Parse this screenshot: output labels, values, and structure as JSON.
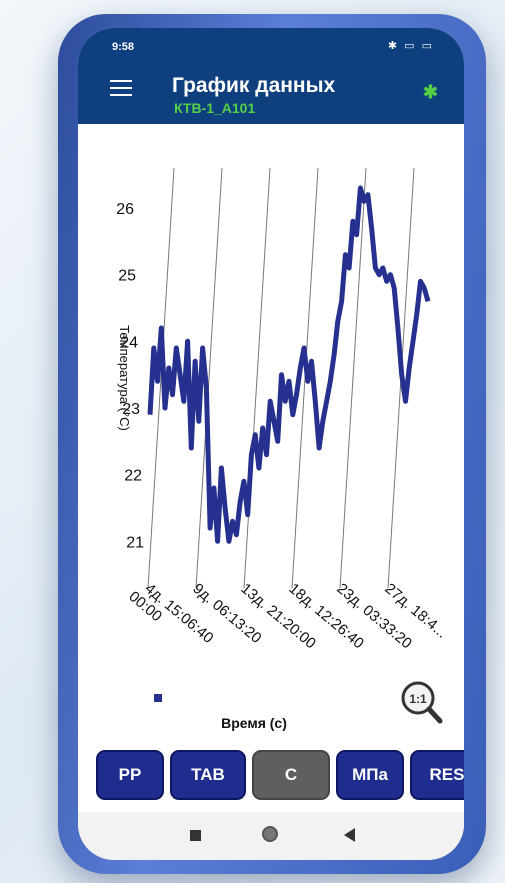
{
  "status_bar": {
    "time": "9:58"
  },
  "app_bar": {
    "title": "График данных",
    "subtitle": "КТВ-1_А101"
  },
  "chart_data": {
    "type": "line",
    "title": "",
    "xlabel": "Время (с)",
    "ylabel": "Температура (°C)",
    "ylim": [
      20.6,
      26.6
    ],
    "yticks": [
      "21",
      "22",
      "23",
      "24",
      "25",
      "26"
    ],
    "x_ticks": [
      "4д. 15:06:40",
      "9д. 06:13:20",
      "13д. 21:20:00",
      "18д. 12:26:40",
      "23д. 03:33:20",
      "27д. 18:4..."
    ],
    "x_tick_first_line": "00:00",
    "grid": "vertical",
    "series": [
      {
        "color": "#26318f",
        "values": [
          22.9,
          23.9,
          23.4,
          24.2,
          23.0,
          23.6,
          23.2,
          23.9,
          23.5,
          23.1,
          24.0,
          22.4,
          23.7,
          22.8,
          23.9,
          23.3,
          21.2,
          21.8,
          21.0,
          22.1,
          21.5,
          21.0,
          21.3,
          21.1,
          21.6,
          21.9,
          21.4,
          22.3,
          22.6,
          22.1,
          22.7,
          22.3,
          23.1,
          22.8,
          22.5,
          23.5,
          23.1,
          23.4,
          22.9,
          23.2,
          23.6,
          23.9,
          23.4,
          23.7,
          23.1,
          22.4,
          22.8,
          23.1,
          23.4,
          23.8,
          24.3,
          24.6,
          25.3,
          25.1,
          25.8,
          25.6,
          26.3,
          26.1,
          26.2,
          25.7,
          25.1,
          25.0,
          25.1,
          24.9,
          25.0,
          24.8,
          24.2,
          23.5,
          23.1,
          23.6,
          24.0,
          24.4,
          24.9,
          24.8,
          24.6
        ]
      }
    ]
  },
  "toolbar": {
    "buttons": [
      "PP",
      "TAB",
      "C",
      "МПа",
      "RES"
    ]
  },
  "icons": {
    "menu": "menu-icon",
    "bluetooth": "bluetooth-icon",
    "zoom": "zoom-reset-icon"
  }
}
